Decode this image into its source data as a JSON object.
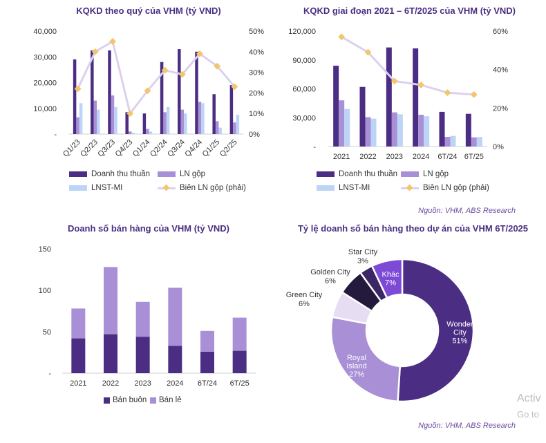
{
  "colors": {
    "dark_purple": "#4b2e83",
    "mid_purple": "#a88fd6",
    "light_blue": "#bcd4f5",
    "line_lavender": "#ddd0ee",
    "marker": "#f2c66d",
    "title": "#4b2e83"
  },
  "chart_data": [
    {
      "id": "quarterly",
      "type": "bar",
      "title": "KQKD theo quý của VHM (tỷ VND)",
      "categories": [
        "Q1/23",
        "Q2/23",
        "Q3/23",
        "Q4/23",
        "Q1/24",
        "Q2/24",
        "Q3/24",
        "Q4/24",
        "Q1/25",
        "Q2/25"
      ],
      "series": [
        {
          "name": "Doanh thu thuần",
          "values": [
            29000,
            32500,
            32500,
            8500,
            8000,
            28000,
            33000,
            32000,
            15500,
            19000
          ]
        },
        {
          "name": "LN gộp",
          "values": [
            6500,
            13000,
            15000,
            1000,
            2000,
            8500,
            9500,
            12500,
            5000,
            4500
          ]
        },
        {
          "name": "LNST-MI",
          "values": [
            12000,
            9500,
            10500,
            500,
            1000,
            10500,
            8000,
            12000,
            2500,
            7500
          ]
        },
        {
          "name": "Biên LN gộp (phải)",
          "axis": "right",
          "values": [
            22,
            40,
            45,
            10,
            21,
            31,
            29,
            39,
            33,
            23
          ]
        }
      ],
      "y_ticks": [
        "-",
        "10,000",
        "20,000",
        "30,000",
        "40,000"
      ],
      "y2_ticks": [
        "0%",
        "10%",
        "20%",
        "30%",
        "40%",
        "50%"
      ],
      "ylim": [
        0,
        40000
      ],
      "y2lim": [
        0,
        50
      ]
    },
    {
      "id": "period",
      "type": "bar",
      "title": "KQKD giai đoạn 2021 – 6T/2025 của VHM (tỷ VND)",
      "categories": [
        "2021",
        "2022",
        "2023",
        "2024",
        "6T/24",
        "6T/25"
      ],
      "series": [
        {
          "name": "Doanh thu thuần",
          "values": [
            84000,
            62000,
            103000,
            102000,
            36000,
            34000
          ]
        },
        {
          "name": "LN gộp",
          "values": [
            48000,
            30500,
            35500,
            33000,
            10000,
            9500
          ]
        },
        {
          "name": "LNST-MI",
          "values": [
            39000,
            29000,
            33500,
            31500,
            11000,
            10000
          ]
        },
        {
          "name": "Biên LN gộp (phải)",
          "axis": "right",
          "values": [
            57,
            49,
            34,
            32,
            28,
            27
          ]
        }
      ],
      "y_ticks": [
        "-",
        "30,000",
        "60,000",
        "90,000",
        "120,000"
      ],
      "y2_ticks": [
        "0%",
        "20%",
        "40%",
        "60%"
      ],
      "ylim": [
        0,
        120000
      ],
      "y2lim": [
        0,
        60
      ]
    },
    {
      "id": "sales",
      "type": "bar",
      "stacked": true,
      "title": "Doanh số bán hàng của VHM (tỷ VND)",
      "categories": [
        "2021",
        "2022",
        "2023",
        "2024",
        "6T/24",
        "6T/25"
      ],
      "series": [
        {
          "name": "Bán buôn",
          "values": [
            42,
            47,
            44,
            33,
            26,
            27
          ]
        },
        {
          "name": "Bán lẻ",
          "values": [
            36,
            81,
            42,
            70,
            25,
            40
          ]
        }
      ],
      "y_ticks": [
        "-",
        "50",
        "100",
        "150"
      ],
      "ylim": [
        0,
        150
      ]
    },
    {
      "id": "donut",
      "type": "pie",
      "title": "Tỷ lệ doanh số bán hàng theo dự án của VHM 6T/2025",
      "slices": [
        {
          "name": "Wonder City",
          "name_lines": [
            "Wonder",
            "City"
          ],
          "value": 51,
          "label": "51%",
          "color": "#4b2e83",
          "inside": true
        },
        {
          "name": "Royal Island",
          "name_lines": [
            "Royal",
            "Island"
          ],
          "value": 27,
          "label": "27%",
          "color": "#a88fd6",
          "inside": true
        },
        {
          "name": "Green City",
          "name_lines": [
            "Green City"
          ],
          "value": 6,
          "label": "6%",
          "color": "#e6ddf3",
          "inside": false
        },
        {
          "name": "Golden City",
          "name_lines": [
            "Golden City"
          ],
          "value": 6,
          "label": "6%",
          "color": "#231a3c",
          "inside": false
        },
        {
          "name": "Star City",
          "name_lines": [
            "Star City"
          ],
          "value": 3,
          "label": "3%",
          "color": "#3c2766",
          "inside": false
        },
        {
          "name": "Khác",
          "name_lines": [
            "Khác"
          ],
          "value": 7,
          "label": "7%",
          "color": "#7d4ad6",
          "inside": true
        }
      ]
    }
  ],
  "legends": {
    "quarterly": [
      "Doanh thu thuần",
      "LN gộp",
      "LNST-MI",
      "Biên LN gộp (phải)"
    ],
    "period": [
      "Doanh thu thuần",
      "LN gộp",
      "LNST-MI",
      "Biên LN gộp (phải)"
    ],
    "sales": [
      "Bán buôn",
      "Bán lẻ"
    ]
  },
  "source_top": "Nguồn: VHM, ABS Research",
  "source_bottom": "Nguồn: VHM, ABS Research",
  "watermark": {
    "line1": "Activ",
    "line2": "Go to"
  }
}
